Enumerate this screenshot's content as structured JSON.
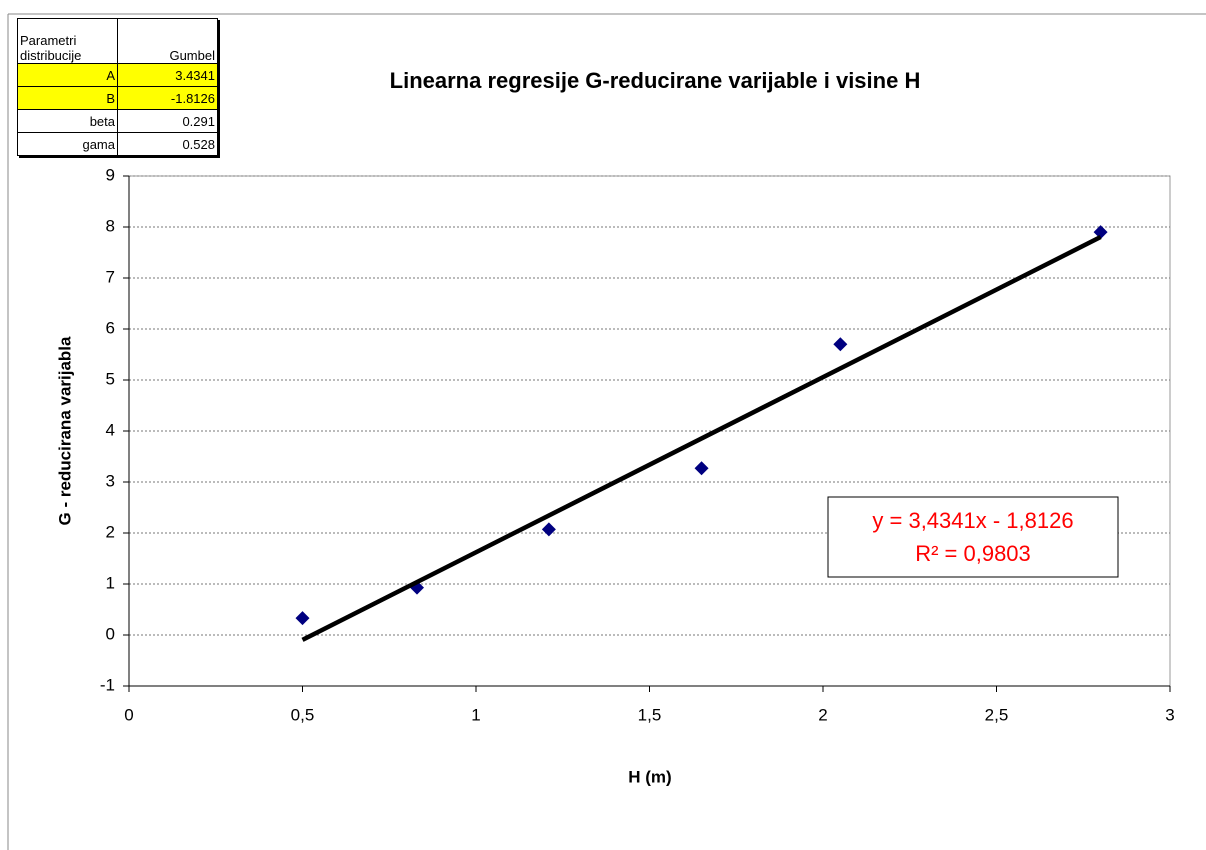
{
  "chart_data": {
    "type": "scatter",
    "title": "Linearna regresije G-reducirane varijable i visine H",
    "x_label": "H (m)",
    "y_label": "G - reducirana varijabla",
    "x": [
      0.5,
      0.83,
      1.21,
      1.65,
      2.05,
      2.8
    ],
    "values": [
      0.33,
      0.93,
      2.07,
      3.27,
      5.7,
      7.9
    ],
    "color": "#000080",
    "xlim": [
      0,
      3
    ],
    "xticks": [
      0,
      {
        "value": 0.5,
        "label": "0,5"
      },
      1,
      {
        "value": 1.5,
        "label": "1,5"
      },
      2,
      {
        "value": 2.5,
        "label": "2,5"
      },
      3
    ],
    "ylim": [
      -1,
      9
    ],
    "yticks": [
      -1,
      0,
      1,
      2,
      3,
      4,
      5,
      6,
      7,
      8,
      9
    ],
    "grid": true,
    "trendline": {
      "equation": "y = 3,4341x - 1,8126",
      "r2": "R² = 0,9803",
      "color": "#000000",
      "label_color": "#ff0000"
    }
  },
  "table": {
    "header": [
      "Parametri distribucije",
      "Gumbel"
    ],
    "rows": [
      {
        "label": "A",
        "value": 3.4341,
        "highlight": true
      },
      {
        "label": "B",
        "value": -1.8126,
        "highlight": true
      },
      {
        "label": "beta",
        "value": 0.291,
        "highlight": false
      },
      {
        "label": "gama",
        "value": 0.528,
        "highlight": false
      }
    ]
  }
}
